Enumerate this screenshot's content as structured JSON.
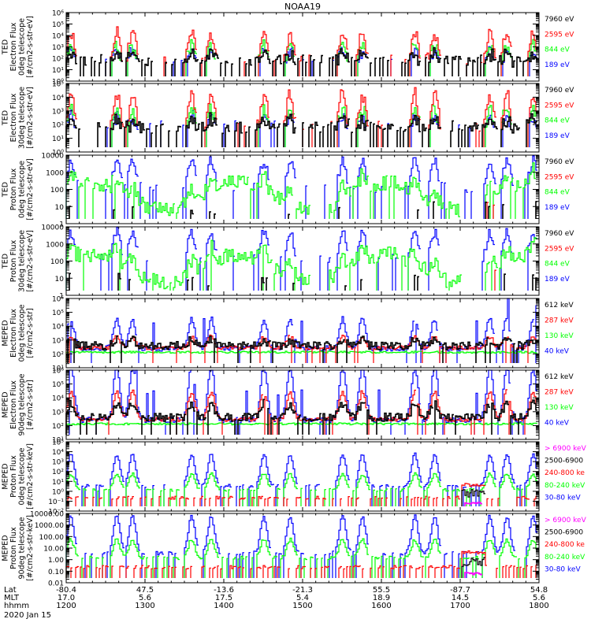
{
  "chart_data": {
    "type": "line",
    "title": "NOAA19",
    "date_label": "2020 Jan 15",
    "x_axis": {
      "rows": [
        {
          "label": "Lat",
          "values": [
            "-80.4",
            "47.5",
            "-13.6",
            "-21.3",
            "55.5",
            "-87.7",
            "54.8"
          ]
        },
        {
          "label": "MLT",
          "values": [
            "17.0",
            "5.6",
            "17.5",
            "5.4",
            "18.9",
            "14.5",
            "5.6"
          ]
        },
        {
          "label": "hhmm",
          "values": [
            "1200",
            "1300",
            "1400",
            "1500",
            "1600",
            "1700",
            "1800"
          ]
        }
      ],
      "range_hhmm": [
        1200,
        1800
      ],
      "major_ticks_hours": [
        12,
        13,
        14,
        15,
        16,
        17,
        18
      ],
      "minor_tick_minutes": 10
    },
    "panels": [
      {
        "ylabel": [
          "TED",
          "Electron Flux",
          "0deg telescope",
          "[#/cm2-s-str-eV]"
        ],
        "ytick_labels": [
          "10⁰",
          "10¹",
          "10²",
          "10³",
          "10⁴",
          "10⁵",
          "10⁶"
        ],
        "ylim_log10": [
          0,
          6
        ],
        "legend": [
          {
            "label": "7960 eV",
            "color": "#000000"
          },
          {
            "label": "2595 eV",
            "color": "#ff0000"
          },
          {
            "label": "844 eV",
            "color": "#00ff00"
          },
          {
            "label": "189 eV",
            "color": "#0000ff"
          }
        ],
        "style": "ted_e"
      },
      {
        "ylabel": [
          "TED",
          "Electron Flux",
          "30deg telescope",
          "[#/cm2-s-str-eV]"
        ],
        "ytick_labels": [
          "10⁰",
          "10¹",
          "10²",
          "10³",
          "10⁴",
          "10⁵"
        ],
        "ylim_log10": [
          0,
          5
        ],
        "legend": [
          {
            "label": "7960 eV",
            "color": "#000000"
          },
          {
            "label": "2595 eV",
            "color": "#ff0000"
          },
          {
            "label": "844 eV",
            "color": "#00ff00"
          },
          {
            "label": "189 eV",
            "color": "#0000ff"
          }
        ],
        "style": "ted_e"
      },
      {
        "ylabel": [
          "TED",
          "Proton Flux",
          "0deg telescope",
          "[#/cm2-s-str-eV]"
        ],
        "ytick_labels": [
          "1",
          "10",
          "100",
          "1000",
          "10000"
        ],
        "ylim_log10": [
          0,
          4
        ],
        "legend": [
          {
            "label": "7960 eV",
            "color": "#000000"
          },
          {
            "label": "2595 eV",
            "color": "#ff0000"
          },
          {
            "label": "844 eV",
            "color": "#00ff00"
          },
          {
            "label": "189 eV",
            "color": "#0000ff"
          }
        ],
        "style": "ted_p"
      },
      {
        "ylabel": [
          "TED",
          "Proton Flux",
          "30deg telescope",
          "[#/cm2-s-str-eV]"
        ],
        "ytick_labels": [
          "1",
          "10",
          "100",
          "1000",
          "10000"
        ],
        "ylim_log10": [
          0,
          4
        ],
        "legend": [
          {
            "label": "7960 eV",
            "color": "#000000"
          },
          {
            "label": "2595 eV",
            "color": "#ff0000"
          },
          {
            "label": "844 eV",
            "color": "#00ff00"
          },
          {
            "label": "189 eV",
            "color": "#0000ff"
          }
        ],
        "style": "ted_p"
      },
      {
        "ylabel": [
          "MEPED",
          "Electron Flux",
          "0deg telescope",
          "[#/cm2-s-str]"
        ],
        "ytick_labels": [
          "10¹",
          "10²",
          "10³",
          "10⁴",
          "10⁵",
          "10⁶"
        ],
        "ylim_log10": [
          1,
          6
        ],
        "legend": [
          {
            "label": "612 keV",
            "color": "#000000"
          },
          {
            "label": "287 keV",
            "color": "#ff0000"
          },
          {
            "label": "130 keV",
            "color": "#00ff00"
          },
          {
            "label": "40 keV",
            "color": "#0000ff"
          }
        ],
        "style": "mep_e0"
      },
      {
        "ylabel": [
          "MEPED",
          "Electron Flux",
          "90deg telescope",
          "[#/cm2-s-str]"
        ],
        "ytick_labels": [
          "10¹",
          "10²",
          "10³",
          "10⁴",
          "10⁵",
          "10⁶"
        ],
        "ylim_log10": [
          1,
          6
        ],
        "legend": [
          {
            "label": "612 keV",
            "color": "#000000"
          },
          {
            "label": "287 keV",
            "color": "#ff0000"
          },
          {
            "label": "130 keV",
            "color": "#00ff00"
          },
          {
            "label": "40 keV",
            "color": "#0000ff"
          }
        ],
        "style": "mep_e90"
      },
      {
        "ylabel": [
          "MEPED",
          "Proton Flux",
          "0deg telescope",
          "[#/cm2-s-str-keV]"
        ],
        "ytick_labels": [
          "10⁻²",
          "10⁻¹",
          "10⁰",
          "10¹",
          "10²",
          "10³",
          "10⁴",
          "10⁵"
        ],
        "ylim_log10": [
          -2,
          5
        ],
        "legend": [
          {
            "label": "> 6900 keV",
            "color": "#ff00ff"
          },
          {
            "label": "2500-6900",
            "color": "#000000"
          },
          {
            "label": "240-800 ke",
            "color": "#ff0000"
          },
          {
            "label": "80-240 keV",
            "color": "#00ff00"
          },
          {
            "label": "30-80 keV",
            "color": "#0000ff"
          }
        ],
        "style": "mep_p"
      },
      {
        "ylabel": [
          "MEPED",
          "Proton Flux",
          "90deg telescope",
          "[#/cm2-s-str-keV]"
        ],
        "ytick_labels": [
          "0.01",
          "0.10",
          "1.00",
          "10.00",
          "100.00",
          "1000.00",
          "10000.00"
        ],
        "ylim_log10": [
          -2,
          4
        ],
        "legend": [
          {
            "label": "> 6900 keV",
            "color": "#ff00ff"
          },
          {
            "label": "2500-6900",
            "color": "#000000"
          },
          {
            "label": "240-800 ke",
            "color": "#ff0000"
          },
          {
            "label": "80-240 keV",
            "color": "#00ff00"
          },
          {
            "label": "30-80 keV",
            "color": "#0000ff"
          }
        ],
        "style": "mep_p"
      }
    ],
    "series_note": "Each panel shows four or five channel time series (log scale flux) vs UT 12:00-18:00; traces rendered procedurally as approximations of radiation-belt crossings at ~12:05, 12:40, 12:52, 13:35, 13:50, 14:30, 14:50, 15:30, 15:45, 16:25, 16:40, 17:20, 17:35, 17:55."
  }
}
